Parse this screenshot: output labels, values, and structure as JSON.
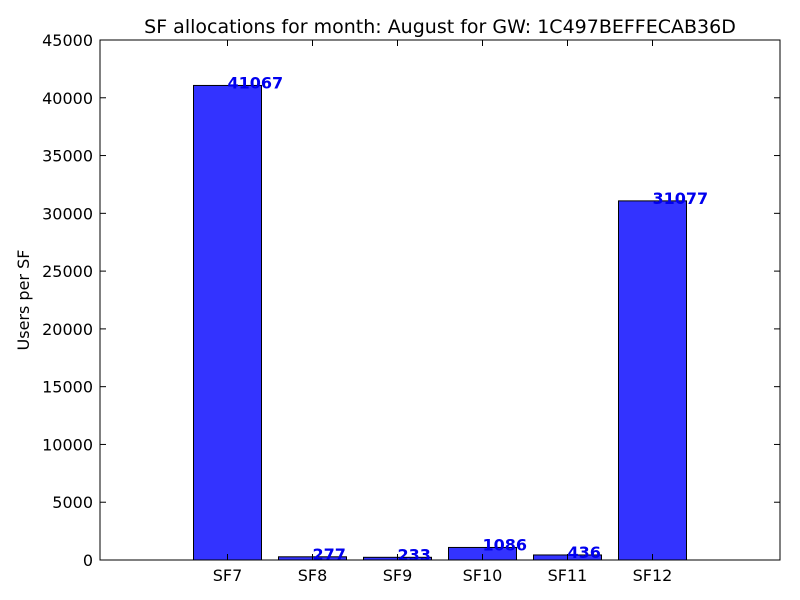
{
  "chart_data": {
    "type": "bar",
    "title": "SF allocations for month: August for GW: 1C497BEFFECAB36D",
    "xlabel": "",
    "ylabel": "Users per SF",
    "categories": [
      "SF7",
      "SF8",
      "SF9",
      "SF10",
      "SF11",
      "SF12"
    ],
    "values": [
      41067,
      277,
      233,
      1086,
      436,
      31077
    ],
    "data_labels": [
      "41067",
      "277",
      "233",
      "1086",
      "436",
      "31077"
    ],
    "ylim": [
      0,
      45000
    ],
    "yticks": [
      0,
      5000,
      10000,
      15000,
      20000,
      25000,
      30000,
      35000,
      40000,
      45000
    ],
    "ytick_labels": [
      "0",
      "5000",
      "10000",
      "15000",
      "20000",
      "25000",
      "30000",
      "35000",
      "40000",
      "45000"
    ],
    "grid": false,
    "colors": {
      "bar_fill": "#3333ff",
      "bar_edge": "#000000",
      "data_label": "#0000ee"
    }
  }
}
